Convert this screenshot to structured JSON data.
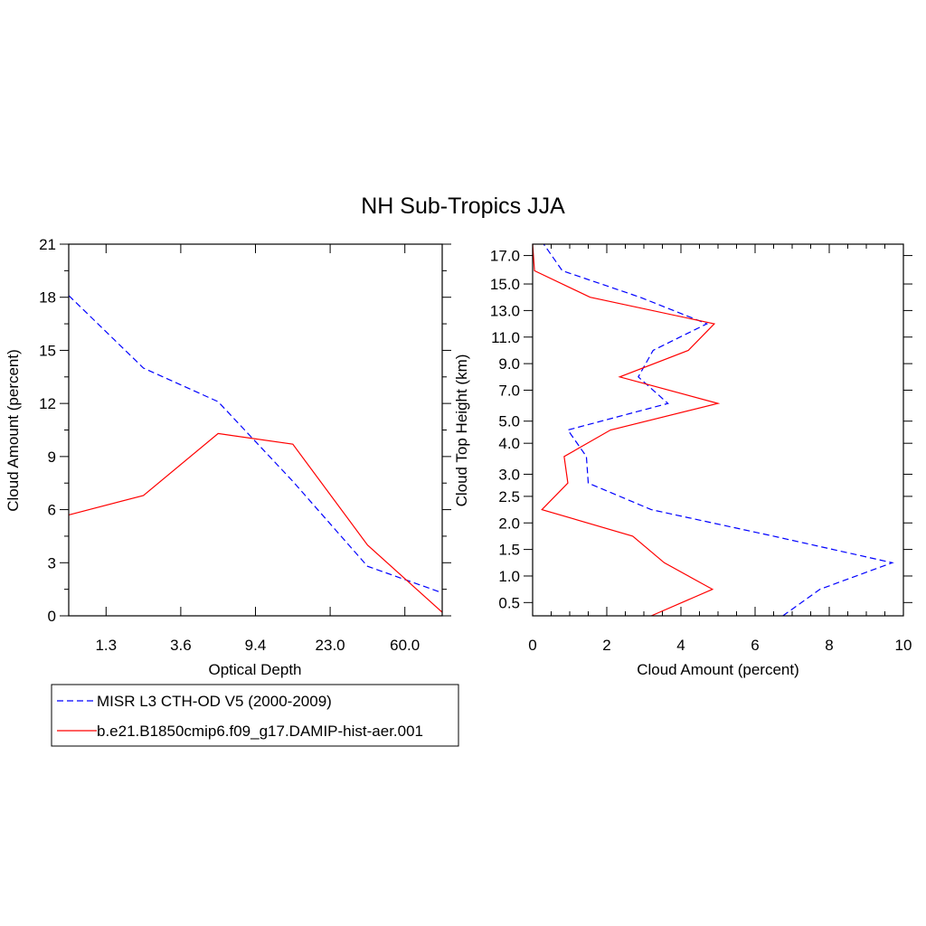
{
  "title": "NH Sub-Tropics JJA",
  "colors": {
    "obs": "#0000ff",
    "model": "#ff0000",
    "axis": "#000000"
  },
  "legend": [
    {
      "label": "MISR L3 CTH-OD V5 (2000-2009)",
      "style": "dashed",
      "color": "#0000ff"
    },
    {
      "label": "b.e21.B1850cmip6.f09_g17.DAMIP-hist-aer.001",
      "style": "solid",
      "color": "#ff0000"
    }
  ],
  "chart_data": [
    {
      "type": "line",
      "title": "NH Sub-Tropics JJA",
      "xlabel": "Optical Depth",
      "ylabel": "Cloud Amount (percent)",
      "x": [
        0.5,
        1.5,
        2.5,
        3.5,
        4.5,
        5.5
      ],
      "xlim": [
        0.5,
        5.5
      ],
      "xticks": [
        1.0,
        2.0,
        3.0,
        4.0,
        5.0
      ],
      "xticklabels": [
        "1.3",
        "3.6",
        "9.4",
        "23.0",
        "60.0"
      ],
      "ylim": [
        0,
        21
      ],
      "yticks": [
        0,
        3,
        6,
        9,
        12,
        15,
        18,
        21
      ],
      "yticklabels": [
        "0",
        "3",
        "6",
        "9",
        "12",
        "15",
        "18",
        "21"
      ],
      "series": [
        {
          "name": "MISR L3 CTH-OD V5 (2000-2009)",
          "style": "dashed",
          "color": "#0000ff",
          "values": [
            18.1,
            14.0,
            12.1,
            7.6,
            2.8,
            1.3
          ]
        },
        {
          "name": "b.e21.B1850cmip6.f09_g17.DAMIP-hist-aer.001",
          "style": "solid",
          "color": "#ff0000",
          "values": [
            5.7,
            6.8,
            10.3,
            9.7,
            4.0,
            0.2
          ]
        }
      ]
    },
    {
      "type": "line",
      "orientation": "vertical",
      "xlabel": "Cloud Amount (percent)",
      "ylabel": "Cloud Top Height (km)",
      "xlim": [
        0,
        10
      ],
      "xticks": [
        0,
        2,
        4,
        6,
        8,
        10
      ],
      "xticklabels": [
        "0",
        "2",
        "4",
        "6",
        "8",
        "10"
      ],
      "ylim": [
        0.25,
        17.75
      ],
      "yticks": [
        0.5,
        1.0,
        1.5,
        2.0,
        2.5,
        3.0,
        4.0,
        5.0,
        7.0,
        9.0,
        11.0,
        13.0,
        15.0,
        17.0
      ],
      "yticklabels": [
        "0.5",
        "1.0",
        "1.5",
        "2.0",
        "2.5",
        "3.0",
        "4.0",
        "5.0",
        "7.0",
        "9.0",
        "11.0",
        "13.0",
        "15.0",
        "17.0"
      ],
      "levels": [
        0.25,
        0.75,
        1.25,
        1.75,
        2.25,
        2.75,
        3.5,
        4.5,
        6.0,
        8.0,
        10.0,
        12.0,
        14.0,
        16.0,
        17.75
      ],
      "series": [
        {
          "name": "MISR L3 CTH-OD V5 (2000-2009)",
          "style": "dashed",
          "color": "#0000ff",
          "values": [
            6.75,
            7.75,
            9.7,
            6.5,
            3.2,
            1.5,
            1.45,
            0.95,
            3.65,
            2.85,
            3.25,
            4.7,
            2.9,
            0.8,
            0.3
          ]
        },
        {
          "name": "b.e21.B1850cmip6.f09_g17.DAMIP-hist-aer.001",
          "style": "solid",
          "color": "#ff0000",
          "values": [
            3.2,
            4.85,
            3.55,
            2.7,
            0.25,
            0.95,
            0.85,
            2.1,
            5.0,
            2.35,
            4.2,
            4.9,
            1.55,
            0.05,
            0.0
          ]
        }
      ]
    }
  ]
}
